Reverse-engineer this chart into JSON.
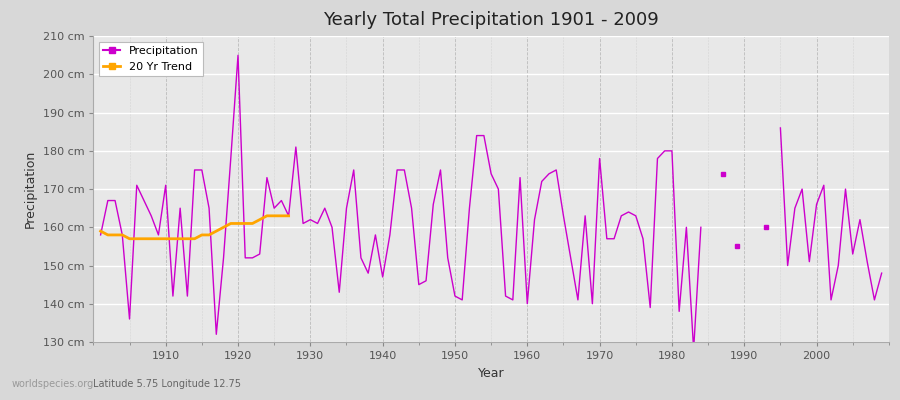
{
  "title": "Yearly Total Precipitation 1901 - 2009",
  "xlabel": "Year",
  "ylabel": "Precipitation",
  "subtitle": "Latitude 5.75 Longitude 12.75",
  "watermark": "worldspecies.org",
  "fig_bg_color": "#d8d8d8",
  "plot_bg_color": "#e8e8e8",
  "line_color": "#cc00cc",
  "trend_color": "#ffa500",
  "ylim": [
    130,
    210
  ],
  "xlim": [
    1900,
    2010
  ],
  "yticks": [
    130,
    140,
    150,
    160,
    170,
    180,
    190,
    200,
    210
  ],
  "xticks": [
    1910,
    1920,
    1930,
    1940,
    1950,
    1960,
    1970,
    1980,
    1990,
    2000
  ],
  "years": [
    1901,
    1902,
    1903,
    1904,
    1905,
    1906,
    1907,
    1908,
    1909,
    1910,
    1911,
    1912,
    1913,
    1914,
    1915,
    1916,
    1917,
    1918,
    1919,
    1920,
    1921,
    1922,
    1923,
    1924,
    1925,
    1926,
    1927,
    1928,
    1929,
    1930,
    1931,
    1932,
    1933,
    1934,
    1935,
    1936,
    1937,
    1938,
    1939,
    1940,
    1941,
    1942,
    1943,
    1944,
    1945,
    1946,
    1947,
    1948,
    1949,
    1950,
    1951,
    1952,
    1953,
    1954,
    1955,
    1956,
    1957,
    1958,
    1959,
    1960,
    1961,
    1962,
    1963,
    1964,
    1965,
    1966,
    1967,
    1968,
    1969,
    1970,
    1971,
    1972,
    1973,
    1974,
    1975,
    1976,
    1977,
    1978,
    1979,
    1980,
    1981,
    1982,
    1983,
    1984,
    1985,
    1986,
    1987,
    1988,
    1989,
    1990,
    1991,
    1992,
    1993,
    1994,
    1995,
    1996,
    1997,
    1998,
    1999,
    2000,
    2001,
    2002,
    2003,
    2004,
    2005,
    2006,
    2007,
    2008,
    2009
  ],
  "precip": [
    158,
    167,
    167,
    158,
    136,
    171,
    167,
    163,
    158,
    171,
    142,
    165,
    142,
    175,
    175,
    165,
    132,
    152,
    178,
    205,
    152,
    152,
    153,
    173,
    165,
    167,
    163,
    181,
    161,
    162,
    161,
    165,
    160,
    143,
    165,
    175,
    152,
    148,
    158,
    147,
    158,
    175,
    175,
    165,
    145,
    146,
    166,
    175,
    152,
    142,
    141,
    165,
    184,
    184,
    174,
    170,
    142,
    141,
    173,
    140,
    162,
    172,
    174,
    175,
    163,
    152,
    141,
    163,
    140,
    178,
    157,
    157,
    163,
    164,
    163,
    157,
    139,
    178,
    180,
    180,
    138,
    160,
    128,
    160,
    null,
    null,
    174,
    null,
    155,
    null,
    null,
    null,
    160,
    null,
    186,
    150,
    165,
    170,
    151,
    166,
    171,
    141,
    150,
    170,
    153,
    162,
    151,
    141,
    148
  ],
  "trend_years": [
    1901,
    1902,
    1903,
    1904,
    1905,
    1906,
    1907,
    1908,
    1909,
    1910,
    1911,
    1912,
    1913,
    1914,
    1915,
    1916,
    1917,
    1918,
    1919,
    1920,
    1921,
    1922,
    1923,
    1924,
    1925,
    1926,
    1927
  ],
  "trend_values": [
    159,
    158,
    158,
    158,
    157,
    157,
    157,
    157,
    157,
    157,
    157,
    157,
    157,
    157,
    158,
    158,
    159,
    160,
    161,
    161,
    161,
    161,
    162,
    163,
    163,
    163,
    163
  ]
}
